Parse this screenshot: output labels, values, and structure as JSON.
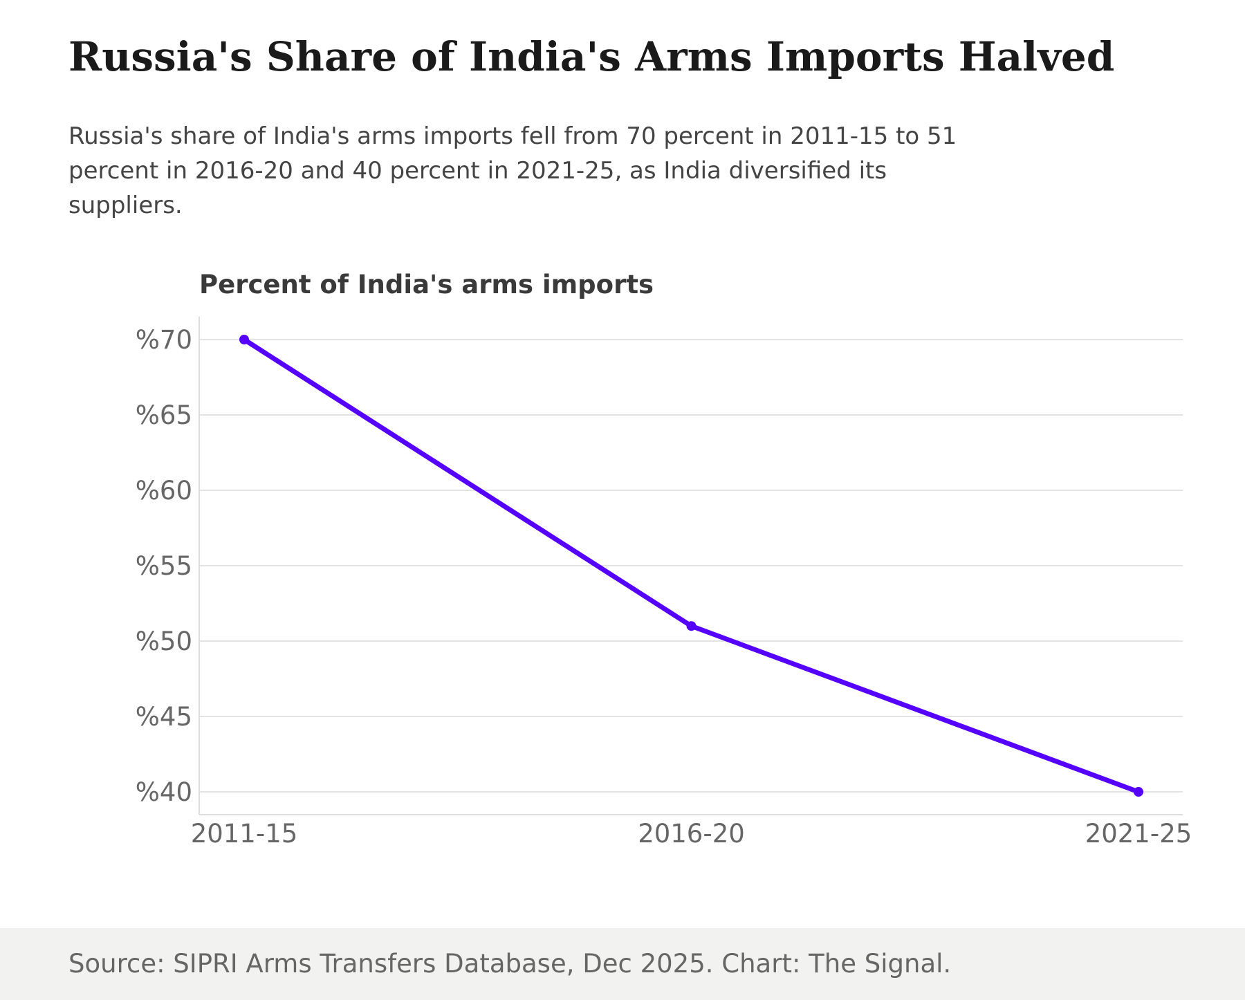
{
  "header": {
    "title": "Russia's Share of India's Arms Imports Halved",
    "subtitle": "Russia's share of India's arms imports fell from 70 percent in 2011-15 to 51 percent in 2016-20 and 40 percent in 2021-25, as India diversified its suppliers."
  },
  "chart_data": {
    "type": "line",
    "title": "Percent of India's arms imports",
    "categories": [
      "2011-15",
      "2016-20",
      "2021-25"
    ],
    "series": [
      {
        "values": [
          70,
          51,
          40
        ]
      }
    ],
    "ylim": [
      40,
      70
    ],
    "yticks": [
      70,
      65,
      60,
      55,
      50,
      45,
      40
    ],
    "ytick_prefix": "%",
    "grid": true,
    "line_color": "#5500ff",
    "grid_color": "#e3e3e3",
    "axis_color": "#dddddd",
    "tick_label_color": "#666666"
  },
  "footer": {
    "source": "Source: SIPRI Arms Transfers Database, Dec 2025. Chart: The Signal."
  }
}
